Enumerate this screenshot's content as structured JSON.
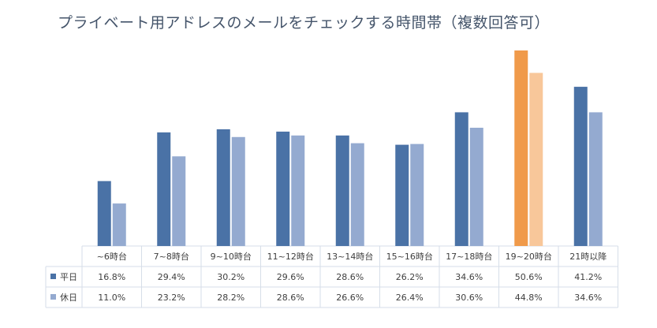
{
  "title": "プライベート用アドレスのメールをチェックする時間帯（複数回答可）",
  "chart_data": {
    "type": "bar",
    "title": "プライベート用アドレスのメールをチェックする時間帯（複数回答可）",
    "categories": [
      "~6時台",
      "7~8時台",
      "9~10時台",
      "11~12時台",
      "13~14時台",
      "15~16時台",
      "17~18時台",
      "19~20時台",
      "21時以降"
    ],
    "series": [
      {
        "name": "平日",
        "values": [
          16.8,
          29.4,
          30.2,
          29.6,
          28.6,
          26.2,
          34.6,
          50.6,
          41.2
        ],
        "labels": [
          "16.8%",
          "29.4%",
          "30.2%",
          "29.6%",
          "28.6%",
          "26.2%",
          "34.6%",
          "50.6%",
          "41.2%"
        ],
        "color": "#4a72a6"
      },
      {
        "name": "休日",
        "values": [
          11.0,
          23.2,
          28.2,
          28.6,
          26.6,
          26.4,
          30.6,
          44.8,
          34.6
        ],
        "labels": [
          "11.0%",
          "23.2%",
          "28.2%",
          "28.6%",
          "26.6%",
          "26.4%",
          "30.6%",
          "44.8%",
          "34.6%"
        ],
        "color": "#94aad0"
      }
    ],
    "highlight": {
      "category_index": 7,
      "colors": [
        "#f09a4a",
        "#f8c79a"
      ]
    },
    "ylim": [
      0,
      50.6
    ],
    "xlabel": "",
    "ylabel": "",
    "legend": "data-table"
  }
}
